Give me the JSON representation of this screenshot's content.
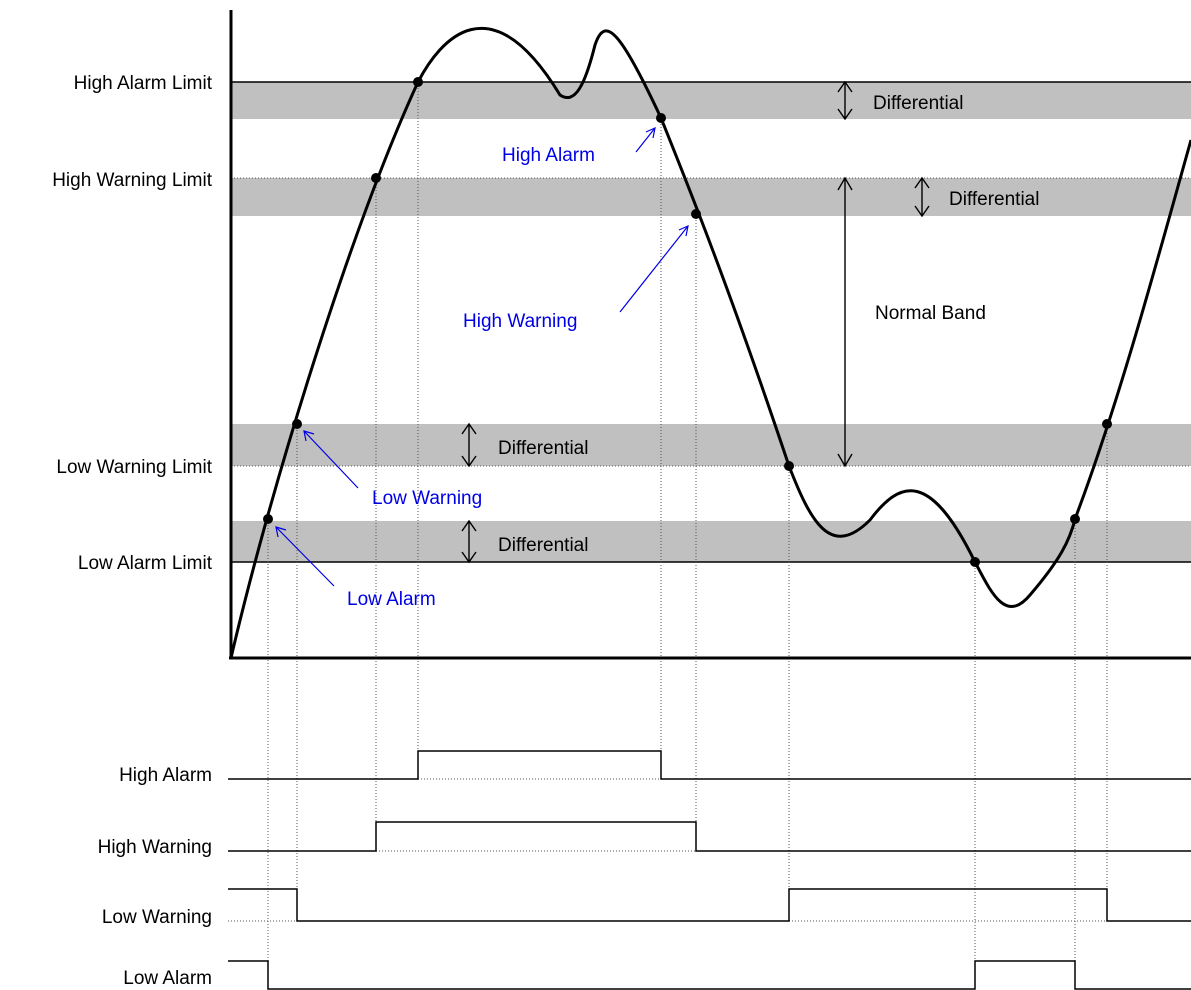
{
  "limits": {
    "high_alarm": "High Alarm Limit",
    "high_warning": "High Warning Limit",
    "low_warning": "Low Warning Limit",
    "low_alarm": "Low Alarm Limit"
  },
  "bands": {
    "differential_1": "Differential",
    "differential_2": "Differential",
    "differential_3": "Differential",
    "differential_4": "Differential",
    "normal": "Normal Band"
  },
  "callouts": {
    "high_alarm": "High Alarm",
    "high_warning": "High Warning",
    "low_warning": "Low Warning",
    "low_alarm": "Low Alarm"
  },
  "outputs": {
    "high_alarm": "High Alarm",
    "high_warning": "High Warning",
    "low_warning": "Low Warning",
    "low_alarm": "Low Alarm"
  },
  "colors": {
    "band_fill": "#c0c0c0",
    "callout_text": "#0000e6",
    "line": "#000000"
  }
}
